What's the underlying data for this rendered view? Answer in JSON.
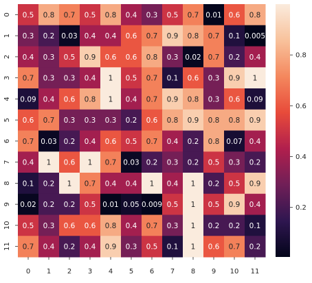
{
  "chart_data": {
    "type": "heatmap",
    "x_tick_labels": [
      "0",
      "1",
      "2",
      "3",
      "4",
      "5",
      "6",
      "7",
      "8",
      "9",
      "10",
      "11"
    ],
    "y_tick_labels": [
      "0",
      "1",
      "2",
      "3",
      "4",
      "5",
      "6",
      "7",
      "8",
      "9",
      "10",
      "11"
    ],
    "values": [
      [
        0.5,
        0.8,
        0.7,
        0.5,
        0.8,
        0.4,
        0.3,
        0.5,
        0.7,
        0.01,
        0.6,
        0.8
      ],
      [
        0.3,
        0.2,
        0.03,
        0.4,
        0.4,
        0.6,
        0.7,
        0.9,
        0.8,
        0.7,
        0.1,
        0.005
      ],
      [
        0.4,
        0.3,
        0.5,
        0.9,
        0.6,
        0.6,
        0.8,
        0.3,
        0.02,
        0.7,
        0.2,
        0.4
      ],
      [
        0.7,
        0.3,
        0.3,
        0.4,
        1,
        0.5,
        0.7,
        0.1,
        0.6,
        0.3,
        0.9,
        1
      ],
      [
        0.09,
        0.4,
        0.6,
        0.8,
        1,
        0.4,
        0.7,
        0.9,
        0.8,
        0.3,
        0.6,
        0.09
      ],
      [
        0.6,
        0.7,
        0.3,
        0.3,
        0.3,
        0.2,
        0.6,
        0.8,
        0.9,
        0.8,
        0.8,
        0.9
      ],
      [
        0.7,
        0.03,
        0.2,
        0.4,
        0.6,
        0.5,
        0.7,
        0.4,
        0.2,
        0.8,
        0.07,
        0.4
      ],
      [
        0.4,
        1,
        0.6,
        1,
        0.7,
        0.03,
        0.2,
        0.3,
        0.2,
        0.5,
        0.3,
        0.2
      ],
      [
        0.1,
        0.2,
        1,
        0.7,
        0.4,
        0.4,
        1,
        0.4,
        1,
        0.2,
        0.5,
        0.9
      ],
      [
        0.02,
        0.2,
        0.2,
        0.5,
        0.01,
        0.05,
        0.009,
        0.5,
        1,
        0.5,
        0.9,
        0.4
      ],
      [
        0.5,
        0.3,
        0.6,
        0.6,
        0.8,
        0.4,
        0.7,
        0.3,
        1,
        0.2,
        0.2,
        0.1
      ],
      [
        0.7,
        0.4,
        0.2,
        0.4,
        0.9,
        0.3,
        0.5,
        0.1,
        1,
        0.6,
        0.7,
        0.2
      ]
    ],
    "colorbar": {
      "ticks": [
        "0.2",
        "0.4",
        "0.6",
        "0.8"
      ],
      "range": [
        0.005,
        1
      ]
    },
    "colormap_stops": [
      "#03051a",
      "#2f1650",
      "#701f57",
      "#b11f4d",
      "#e84b3a",
      "#f4885e",
      "#f8c29c",
      "#faebdd"
    ],
    "text_color_dark": "#262626",
    "text_color_light": "#ffffff",
    "xlabel": "",
    "ylabel": "",
    "title": ""
  }
}
